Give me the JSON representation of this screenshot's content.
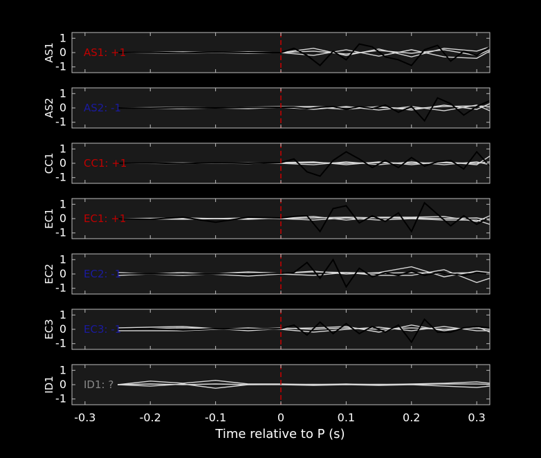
{
  "chart_data": {
    "type": "line",
    "xlabel": "Time relative to P (s)",
    "xlim": [
      -0.32,
      0.32
    ],
    "ylim": [
      -1.4,
      1.4
    ],
    "xticks": [
      "-0.3",
      "-0.2",
      "-0.1",
      "0",
      "0.1",
      "0.2",
      "0.3"
    ],
    "xtick_values": [
      -0.3,
      -0.2,
      -0.1,
      0,
      0.1,
      0.2,
      0.3
    ],
    "yticks": [
      "1",
      "0",
      "-1"
    ],
    "ytick_values": [
      1,
      0,
      -1
    ],
    "p_arrival": 0,
    "colors": {
      "background": "#000000",
      "axes": "#1a1a1a",
      "frame": "#bfbfbf",
      "trace_observed": "#000000",
      "trace_synthetic": "#d9d9d9",
      "marker": "#cc0000",
      "positive": "#c00000",
      "negative": "#1a1aa0",
      "unknown": "#888888"
    },
    "panels": [
      {
        "ylabel": "AS1",
        "annotation": "AS1: +1",
        "polarity": "positive",
        "observed": {
          "x": [
            -0.25,
            -0.2,
            -0.15,
            -0.1,
            -0.05,
            0,
            0.02,
            0.04,
            0.06,
            0.08,
            0.1,
            0.12,
            0.14,
            0.16,
            0.18,
            0.2,
            0.22,
            0.24,
            0.26,
            0.28,
            0.3,
            0.32
          ],
          "y": [
            0,
            0.02,
            -0.02,
            0.03,
            0,
            0,
            0.3,
            -0.2,
            -0.9,
            0.1,
            -0.5,
            0.6,
            0.4,
            -0.3,
            -0.5,
            -0.9,
            0.2,
            0.5,
            -0.6,
            0.1,
            -0.2,
            0.4
          ]
        },
        "synthetic": [
          {
            "x": [
              -0.25,
              -0.15,
              -0.05,
              0,
              0.05,
              0.1,
              0.15,
              0.2,
              0.25,
              0.3,
              0.32
            ],
            "y": [
              0,
              0.05,
              -0.05,
              0,
              0.3,
              -0.2,
              0.25,
              -0.3,
              0.3,
              0.1,
              0.4
            ]
          },
          {
            "x": [
              -0.25,
              -0.15,
              -0.05,
              0,
              0.05,
              0.1,
              0.15,
              0.2,
              0.25,
              0.3,
              0.32
            ],
            "y": [
              0,
              -0.05,
              0.05,
              0,
              -0.2,
              0.2,
              -0.25,
              0.2,
              -0.3,
              -0.4,
              0.1
            ]
          },
          {
            "x": [
              -0.25,
              -0.15,
              -0.05,
              0,
              0.05,
              0.1,
              0.15,
              0.2,
              0.25,
              0.3,
              0.32
            ],
            "y": [
              0,
              0.02,
              -0.02,
              0,
              0.1,
              -0.1,
              0.15,
              -0.05,
              0.2,
              -0.2,
              0.2
            ]
          }
        ]
      },
      {
        "ylabel": "AS2",
        "annotation": "AS2: -1",
        "polarity": "negative",
        "observed": {
          "x": [
            -0.25,
            -0.2,
            -0.15,
            -0.1,
            -0.05,
            0,
            0.02,
            0.04,
            0.06,
            0.08,
            0.1,
            0.12,
            0.14,
            0.16,
            0.18,
            0.2,
            0.22,
            0.24,
            0.26,
            0.28,
            0.3,
            0.32
          ],
          "y": [
            0,
            -0.02,
            0.02,
            0,
            0.03,
            0.05,
            0.05,
            -0.05,
            0.05,
            0.1,
            -0.1,
            0.1,
            -0.05,
            0.2,
            -0.3,
            0.1,
            -0.9,
            0.7,
            0.3,
            -0.5,
            0.1,
            0.5
          ]
        },
        "synthetic": [
          {
            "x": [
              -0.25,
              -0.15,
              -0.05,
              0,
              0.05,
              0.1,
              0.15,
              0.2,
              0.25,
              0.3,
              0.32
            ],
            "y": [
              0,
              -0.05,
              0.05,
              0.1,
              0.05,
              -0.1,
              0.1,
              -0.15,
              0.2,
              -0.1,
              0.3
            ]
          },
          {
            "x": [
              -0.25,
              -0.15,
              -0.05,
              0,
              0.05,
              0.1,
              0.15,
              0.2,
              0.25,
              0.3,
              0.32
            ],
            "y": [
              0,
              0.05,
              -0.05,
              0.05,
              -0.1,
              0.1,
              -0.15,
              0.1,
              -0.2,
              0.2,
              -0.2
            ]
          },
          {
            "x": [
              -0.25,
              -0.15,
              -0.05,
              0,
              0.05,
              0.1,
              0.15,
              0.2,
              0.25,
              0.3,
              0.32
            ],
            "y": [
              0,
              0,
              0.02,
              0.08,
              0.1,
              0.05,
              0.05,
              -0.05,
              0.1,
              0.15,
              0.1
            ]
          }
        ]
      },
      {
        "ylabel": "CC1",
        "annotation": "CC1: +1",
        "polarity": "positive",
        "observed": {
          "x": [
            -0.25,
            -0.2,
            -0.15,
            -0.1,
            -0.05,
            0,
            0.02,
            0.04,
            0.06,
            0.08,
            0.1,
            0.12,
            0.14,
            0.16,
            0.18,
            0.2,
            0.22,
            0.24,
            0.26,
            0.28,
            0.3,
            0.32
          ],
          "y": [
            0,
            0.02,
            -0.02,
            0.03,
            0,
            0.05,
            0.3,
            -0.6,
            -0.9,
            0.2,
            0.8,
            0.3,
            -0.3,
            0.2,
            -0.3,
            0.4,
            -0.2,
            0.1,
            0.2,
            -0.4,
            0.8,
            -0.2
          ]
        },
        "synthetic": [
          {
            "x": [
              -0.25,
              -0.15,
              -0.05,
              0,
              0.05,
              0.1,
              0.15,
              0.2,
              0.25,
              0.3,
              0.32
            ],
            "y": [
              0,
              0.03,
              -0.03,
              0.05,
              0.1,
              -0.1,
              0.1,
              -0.1,
              0.1,
              -0.1,
              0.5
            ]
          },
          {
            "x": [
              -0.25,
              -0.15,
              -0.05,
              0,
              0.05,
              0.1,
              0.15,
              0.2,
              0.25,
              0.3,
              0.32
            ],
            "y": [
              0,
              -0.03,
              0.03,
              0,
              -0.1,
              0.1,
              -0.1,
              0.1,
              -0.1,
              0.1,
              -0.1
            ]
          },
          {
            "x": [
              -0.25,
              -0.15,
              -0.05,
              0,
              0.05,
              0.1,
              0.15,
              0.2,
              0.25,
              0.3,
              0.32
            ],
            "y": [
              0,
              0,
              0.02,
              0.02,
              0.05,
              0,
              0.05,
              0,
              0.05,
              0,
              0.1
            ]
          }
        ]
      },
      {
        "ylabel": "EC1",
        "annotation": "EC1: +1",
        "polarity": "positive",
        "observed": {
          "x": [
            -0.25,
            -0.2,
            -0.15,
            -0.1,
            -0.05,
            0,
            0.02,
            0.04,
            0.06,
            0.08,
            0.1,
            0.12,
            0.14,
            0.16,
            0.18,
            0.2,
            0.22,
            0.24,
            0.26,
            0.28,
            0.3,
            0.32
          ],
          "y": [
            0,
            -0.05,
            0.1,
            -0.25,
            0.1,
            0.05,
            0.15,
            0.2,
            -0.9,
            0.7,
            0.9,
            -0.3,
            0.2,
            -0.2,
            0.4,
            -0.9,
            1.1,
            0.3,
            -0.5,
            0.2,
            -0.4,
            0.1
          ]
        },
        "synthetic": [
          {
            "x": [
              -0.25,
              -0.15,
              -0.05,
              0,
              0.05,
              0.1,
              0.15,
              0.2,
              0.25,
              0.3,
              0.32
            ],
            "y": [
              0,
              0.05,
              -0.05,
              0.05,
              0.15,
              -0.1,
              0.1,
              0.1,
              0.15,
              -0.2,
              0.2
            ]
          },
          {
            "x": [
              -0.25,
              -0.15,
              -0.05,
              0,
              0.05,
              0.1,
              0.15,
              0.2,
              0.25,
              0.3,
              0.32
            ],
            "y": [
              0,
              -0.05,
              0.05,
              0,
              -0.1,
              0.05,
              -0.1,
              0,
              -0.1,
              -0.1,
              -0.4
            ]
          },
          {
            "x": [
              -0.25,
              -0.15,
              -0.05,
              0,
              0.05,
              0.1,
              0.15,
              0.2,
              0.25,
              0.3,
              0.32
            ],
            "y": [
              0,
              0.02,
              0,
              0.02,
              0.05,
              0.1,
              0.05,
              0.05,
              0,
              0.05,
              -0.1
            ]
          }
        ]
      },
      {
        "ylabel": "EC2",
        "annotation": "EC2: -1",
        "polarity": "negative",
        "observed": {
          "x": [
            -0.25,
            -0.2,
            -0.15,
            -0.1,
            -0.05,
            0,
            0.02,
            0.04,
            0.06,
            0.08,
            0.1,
            0.12,
            0.14,
            0.16,
            0.18,
            0.2,
            0.22,
            0.24,
            0.26,
            0.28,
            0.3,
            0.32
          ],
          "y": [
            0,
            0.02,
            -0.02,
            0.02,
            0,
            0.05,
            0.1,
            0.8,
            -0.3,
            1.0,
            -0.9,
            0.4,
            -0.2,
            0.1,
            -0.1,
            0.2,
            -0.1,
            0.1,
            0,
            -0.1,
            0.1,
            0
          ]
        },
        "synthetic": [
          {
            "x": [
              -0.25,
              -0.15,
              -0.05,
              0,
              0.05,
              0.1,
              0.15,
              0.2,
              0.25,
              0.3,
              0.32
            ],
            "y": [
              0.1,
              -0.1,
              0.15,
              0.05,
              0.2,
              0,
              0.1,
              0.5,
              -0.2,
              0.2,
              0.1
            ]
          },
          {
            "x": [
              -0.25,
              -0.15,
              -0.05,
              0,
              0.05,
              0.1,
              0.15,
              0.2,
              0.25,
              0.3,
              0.32
            ],
            "y": [
              -0.1,
              0.1,
              -0.15,
              0,
              -0.1,
              0.1,
              -0.1,
              -0.1,
              0.3,
              -0.6,
              -0.3
            ]
          },
          {
            "x": [
              -0.25,
              -0.15,
              -0.05,
              0,
              0.05,
              0.1,
              0.15,
              0.2,
              0.25,
              0.3,
              0.32
            ],
            "y": [
              0,
              0,
              0.05,
              0.05,
              0.15,
              0.1,
              0.05,
              0.1,
              0.05,
              0.1,
              0
            ]
          }
        ]
      },
      {
        "ylabel": "EC3",
        "annotation": "EC3: -1",
        "polarity": "negative",
        "observed": {
          "x": [
            -0.25,
            -0.2,
            -0.15,
            -0.1,
            -0.05,
            0,
            0.02,
            0.04,
            0.06,
            0.08,
            0.1,
            0.12,
            0.14,
            0.16,
            0.18,
            0.2,
            0.22,
            0.24,
            0.26,
            0.28,
            0.3,
            0.32
          ],
          "y": [
            0,
            0.05,
            -0.05,
            0.05,
            0,
            0.05,
            0.3,
            -0.4,
            0.5,
            -0.3,
            0.4,
            -0.3,
            0.2,
            -0.2,
            0.3,
            -0.9,
            0.7,
            -0.2,
            -0.2,
            0.1,
            0.2,
            0.1
          ]
        },
        "synthetic": [
          {
            "x": [
              -0.25,
              -0.15,
              -0.05,
              0,
              0.05,
              0.1,
              0.15,
              0.2,
              0.25,
              0.3,
              0.32
            ],
            "y": [
              0.1,
              0.2,
              -0.1,
              0.05,
              0.1,
              0.2,
              -0.2,
              0.3,
              -0.1,
              0.2,
              -0.2
            ]
          },
          {
            "x": [
              -0.25,
              -0.15,
              -0.05,
              0,
              0.05,
              0.1,
              0.15,
              0.2,
              0.25,
              0.3,
              0.32
            ],
            "y": [
              -0.1,
              -0.1,
              0.1,
              0,
              -0.2,
              0,
              0.15,
              -0.1,
              0.2,
              -0.1,
              -0.1
            ]
          },
          {
            "x": [
              -0.25,
              -0.15,
              -0.05,
              0,
              0.05,
              0.1,
              0.15,
              0.2,
              0.25,
              0.3,
              0.32
            ],
            "y": [
              0,
              0.1,
              0,
              0.1,
              0,
              0.1,
              0,
              0.1,
              0,
              0.1,
              0
            ]
          }
        ]
      },
      {
        "ylabel": "ID1",
        "annotation": "ID1: ?",
        "polarity": "unknown",
        "observed": null,
        "synthetic": [
          {
            "x": [
              -0.25,
              -0.2,
              -0.15,
              -0.1,
              -0.05,
              0,
              0.05,
              0.1,
              0.15,
              0.2,
              0.25,
              0.3,
              0.32
            ],
            "y": [
              0,
              0.25,
              0.1,
              0.3,
              0.05,
              0.05,
              0,
              0.05,
              0,
              0.05,
              0.1,
              0.2,
              0.1
            ]
          },
          {
            "x": [
              -0.25,
              -0.2,
              -0.15,
              -0.1,
              -0.05,
              0,
              0.05,
              0.1,
              0.15,
              0.2,
              0.25,
              0.3,
              0.32
            ],
            "y": [
              0,
              -0.1,
              0.05,
              -0.25,
              0,
              0,
              -0.05,
              0,
              -0.05,
              0,
              -0.1,
              -0.2,
              -0.1
            ]
          },
          {
            "x": [
              -0.25,
              -0.2,
              -0.15,
              -0.1,
              -0.05,
              0,
              0.05,
              0.1,
              0.15,
              0.2,
              0.25,
              0.3,
              0.32
            ],
            "y": [
              0,
              0.05,
              0,
              0.05,
              0,
              0.02,
              0.03,
              0.02,
              0.03,
              0.02,
              0.05,
              0.05,
              0.02
            ]
          }
        ]
      }
    ]
  }
}
